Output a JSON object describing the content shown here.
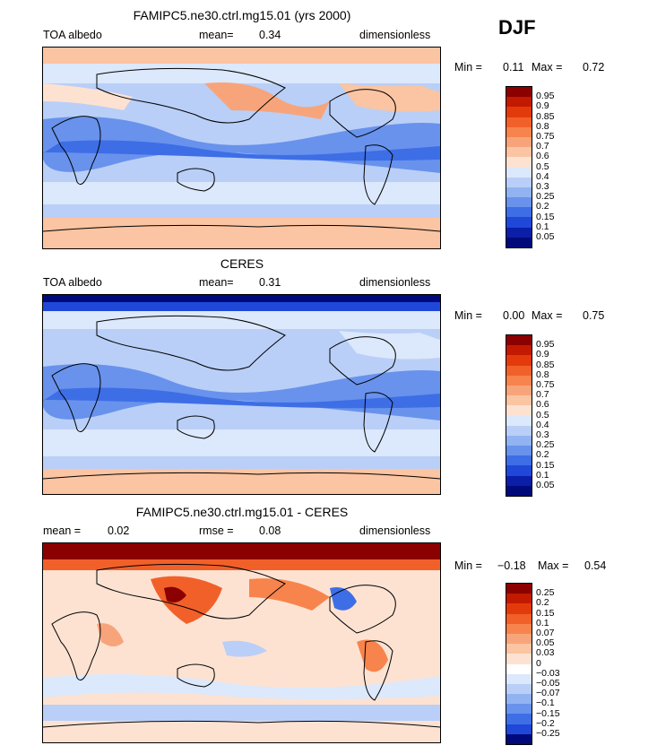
{
  "season": "DJF",
  "panels": [
    {
      "title": "FAMIPC5.ne30.ctrl.mg15.01 (yrs 2000)",
      "left_label": "TOA albedo",
      "mid_label": "mean=",
      "mid_value": "0.34",
      "right_label": "dimensionless",
      "min_label": "Min =",
      "min_value": "0.11",
      "max_label": "Max =",
      "max_value": "0.72",
      "colorbar": {
        "labels": [
          "0.95",
          "0.9",
          "0.85",
          "0.8",
          "0.75",
          "0.7",
          "0.6",
          "0.5",
          "0.4",
          "0.3",
          "0.25",
          "0.2",
          "0.15",
          "0.1",
          "0.05"
        ],
        "colors": [
          "#8b0000",
          "#c21a00",
          "#e33a0c",
          "#f2602a",
          "#f7844c",
          "#f8a47a",
          "#fbc4a2",
          "#fde2d2",
          "#dce8fb",
          "#b9cff7",
          "#92b3f2",
          "#6892ec",
          "#3d6ee6",
          "#1f48d8",
          "#0a1ea8",
          "#000a7a"
        ]
      },
      "map_style": "model"
    },
    {
      "title": "CERES",
      "left_label": "TOA albedo",
      "mid_label": "mean=",
      "mid_value": "0.31",
      "right_label": "dimensionless",
      "min_label": "Min =",
      "min_value": "0.00",
      "max_label": "Max =",
      "max_value": "0.75",
      "colorbar": {
        "labels": [
          "0.95",
          "0.9",
          "0.85",
          "0.8",
          "0.75",
          "0.7",
          "0.6",
          "0.5",
          "0.4",
          "0.3",
          "0.25",
          "0.2",
          "0.15",
          "0.1",
          "0.05"
        ],
        "colors": [
          "#8b0000",
          "#c21a00",
          "#e33a0c",
          "#f2602a",
          "#f7844c",
          "#f8a47a",
          "#fbc4a2",
          "#fde2d2",
          "#dce8fb",
          "#b9cff7",
          "#92b3f2",
          "#6892ec",
          "#3d6ee6",
          "#1f48d8",
          "#0a1ea8",
          "#000a7a"
        ]
      },
      "map_style": "obs"
    },
    {
      "title": "FAMIPC5.ne30.ctrl.mg15.01 - CERES",
      "left_label": "mean =",
      "left_value": "0.02",
      "mid_label": "rmse =",
      "mid_value": "0.08",
      "right_label": "dimensionless",
      "min_label": "Min =",
      "min_value": "−0.18",
      "max_label": "Max =",
      "max_value": "0.54",
      "colorbar": {
        "labels": [
          "0.25",
          "0.2",
          "0.15",
          "0.1",
          "0.07",
          "0.05",
          "0.03",
          "0",
          "−0.03",
          "−0.05",
          "−0.07",
          "−0.1",
          "−0.15",
          "−0.2",
          "−0.25"
        ],
        "colors": [
          "#8b0000",
          "#c21a00",
          "#e33a0c",
          "#f2602a",
          "#f7844c",
          "#f8a47a",
          "#fbc4a2",
          "#fde2d2",
          "#ffffff",
          "#dce8fb",
          "#b9cff7",
          "#92b3f2",
          "#6892ec",
          "#3d6ee6",
          "#1f48d8",
          "#000a7a"
        ]
      },
      "map_style": "diff"
    }
  ]
}
